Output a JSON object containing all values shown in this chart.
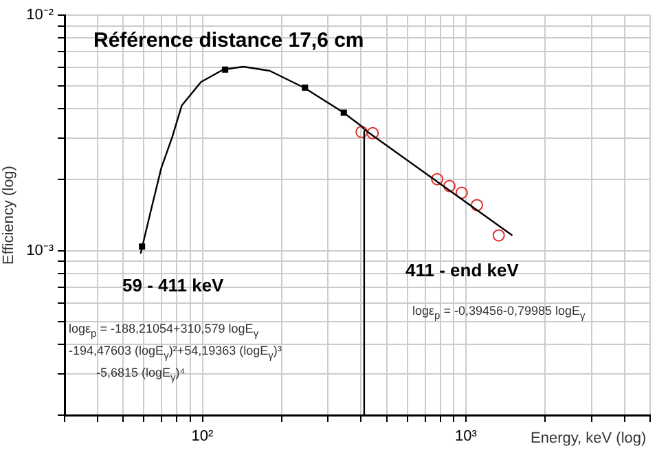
{
  "chart_data": {
    "type": "scatter",
    "xlabel": "Energy, keV (log)",
    "ylabel": "Efficiency (log)",
    "log": "xy",
    "grid": true,
    "legend": false,
    "xlim": [
      30,
      5000
    ],
    "ylim": [
      0.0002,
      0.01
    ],
    "xticks": [
      {
        "value": 30,
        "label": null
      },
      {
        "value": 40,
        "label": null
      },
      {
        "value": 50,
        "label": null
      },
      {
        "value": 60,
        "label": null
      },
      {
        "value": 70,
        "label": null
      },
      {
        "value": 80,
        "label": null
      },
      {
        "value": 90,
        "label": null
      },
      {
        "value": 100,
        "label": "10²"
      },
      {
        "value": 200,
        "label": null
      },
      {
        "value": 300,
        "label": null
      },
      {
        "value": 400,
        "label": null
      },
      {
        "value": 500,
        "label": null
      },
      {
        "value": 600,
        "label": null
      },
      {
        "value": 700,
        "label": null
      },
      {
        "value": 800,
        "label": null
      },
      {
        "value": 900,
        "label": null
      },
      {
        "value": 1000,
        "label": "10³"
      },
      {
        "value": 2000,
        "label": null
      },
      {
        "value": 3000,
        "label": null
      },
      {
        "value": 4000,
        "label": null
      },
      {
        "value": 5000,
        "label": null
      }
    ],
    "yticks": [
      {
        "value": 0.0002,
        "label": null
      },
      {
        "value": 0.0003,
        "label": null
      },
      {
        "value": 0.0004,
        "label": null
      },
      {
        "value": 0.0005,
        "label": null
      },
      {
        "value": 0.0006,
        "label": null
      },
      {
        "value": 0.0007,
        "label": null
      },
      {
        "value": 0.0008,
        "label": null
      },
      {
        "value": 0.0009,
        "label": null
      },
      {
        "value": 0.001,
        "label": "10⁻³"
      },
      {
        "value": 0.002,
        "label": null
      },
      {
        "value": 0.003,
        "label": null
      },
      {
        "value": 0.004,
        "label": null
      },
      {
        "value": 0.005,
        "label": null
      },
      {
        "value": 0.006,
        "label": null
      },
      {
        "value": 0.007,
        "label": null
      },
      {
        "value": 0.008,
        "label": null
      },
      {
        "value": 0.009,
        "label": null
      },
      {
        "value": 0.01,
        "label": "10⁻²"
      }
    ],
    "series": [
      {
        "type": "line",
        "color": "#000000",
        "marker": "none",
        "x": [
          58.3,
          63.4,
          69.8,
          76.8,
          83.5,
          98.8,
          120,
          143,
          180,
          243,
          344,
          402,
          411
        ],
        "values": [
          0.00097,
          0.00144,
          0.00224,
          0.00303,
          0.00413,
          0.0052,
          0.00587,
          0.00604,
          0.0058,
          0.00492,
          0.00385,
          0.00337,
          0.00327
        ]
      },
      {
        "type": "line",
        "color": "#000000",
        "marker": "none",
        "x": [
          411,
          1500
        ],
        "values": [
          0.00327,
          0.00116
        ]
      },
      {
        "type": "line",
        "color": "#000000",
        "marker": "none",
        "x": [
          411,
          411
        ],
        "values": [
          0.0032,
          0.0002
        ]
      },
      {
        "type": "scatter",
        "color": "#000000",
        "marker": "square",
        "x": [
          59,
          122,
          245,
          344
        ],
        "values": [
          0.00104,
          0.00587,
          0.00492,
          0.00385
        ]
      },
      {
        "type": "scatter",
        "color": "#e03030",
        "marker": "circle",
        "x": [
          402,
          443,
          778,
          866,
          964,
          1101,
          1332
        ],
        "values": [
          0.00319,
          0.00315,
          0.00201,
          0.00188,
          0.00176,
          0.00156,
          0.00116
        ]
      }
    ],
    "annotations": [
      "Référence distance 17,6 cm",
      "59 - 411 keV",
      "411 - end keV",
      "logε$_{p}$ = -188,21054+310,579 logE$_{γ}$",
      "-194,47603 (logE$_{γ}$)²+54,19363 (logE$_{γ}$)³",
      "-5,6815 (logE$_{γ}$)⁴",
      "logε$_{p}$ = -0,39456-0,79985 logE$_{γ}$"
    ]
  }
}
